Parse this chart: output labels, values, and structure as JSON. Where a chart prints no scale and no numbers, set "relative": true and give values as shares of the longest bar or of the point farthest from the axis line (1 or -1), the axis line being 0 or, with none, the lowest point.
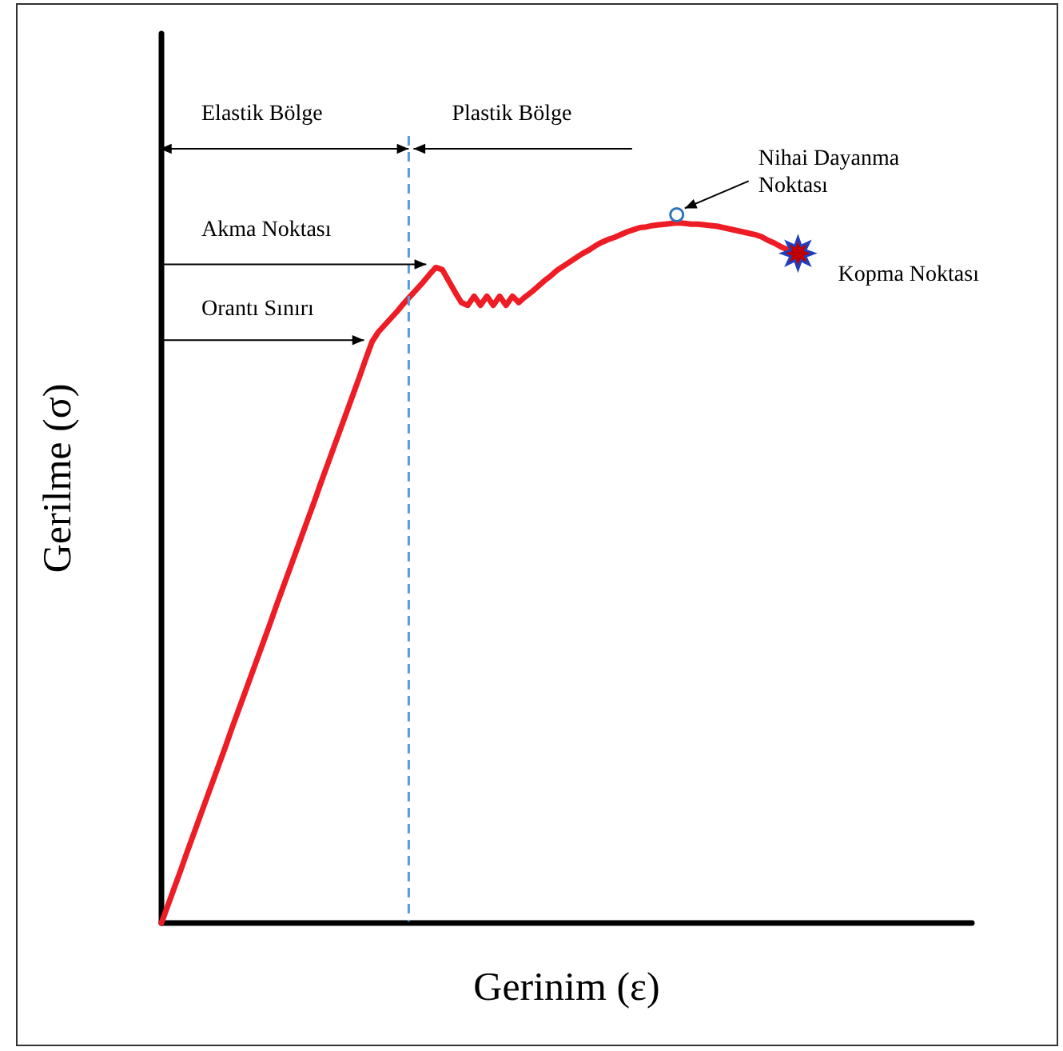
{
  "chart_data": {
    "type": "line",
    "relative": true,
    "xlabel": "Gerinim (ε)",
    "ylabel": "Gerilme (σ)",
    "line_style": "solid",
    "categories": [
      null,
      null,
      null,
      null,
      null,
      null,
      null,
      null,
      null,
      null,
      null,
      null,
      null,
      null,
      null,
      null,
      null,
      null,
      null,
      null,
      null,
      null,
      null,
      null,
      null,
      null,
      null,
      null,
      null,
      null,
      null,
      null,
      null,
      null,
      null,
      null,
      null,
      null,
      null,
      null,
      null,
      null,
      null,
      null,
      null,
      null,
      null,
      null,
      null,
      null,
      null,
      null,
      null,
      null,
      null,
      null,
      null,
      null,
      null,
      null,
      null,
      null,
      null,
      null,
      null,
      null,
      null,
      null,
      null,
      null,
      null,
      null,
      null,
      null,
      null,
      null,
      null,
      null,
      null,
      null,
      null,
      null,
      null,
      null,
      null,
      null,
      null,
      null,
      null,
      null,
      null,
      null,
      null,
      null,
      null,
      null,
      null,
      null,
      null,
      null,
      null,
      null,
      null,
      null,
      null,
      null,
      null,
      null,
      null,
      null,
      null,
      null,
      null,
      null,
      null,
      null,
      null,
      null,
      null,
      null,
      null,
      null,
      null,
      null,
      null,
      null,
      null,
      null
    ],
    "series": [
      {
        "color": "#ee1c25",
        "values": [
          0,
          0.025,
          0.05,
          0.075,
          0.101,
          0.126,
          0.151,
          0.176,
          0.201,
          0.226,
          0.251,
          0.277,
          0.302,
          0.327,
          0.352,
          0.377,
          0.402,
          0.427,
          0.453,
          0.478,
          0.503,
          0.528,
          0.553,
          0.578,
          0.603,
          0.629,
          0.654,
          0.679,
          0.704,
          0.729,
          0.754,
          0.779,
          0.805,
          0.83,
          0.844,
          0.854,
          0.864,
          0.874,
          0.885,
          0.895,
          0.905,
          0.915,
          0.926,
          0.936,
          0.933,
          0.917,
          0.901,
          0.886,
          0.882,
          0.895,
          0.882,
          0.895,
          0.882,
          0.895,
          0.882,
          0.895,
          0.886,
          0.894,
          0.901,
          0.909,
          0.917,
          0.924,
          0.932,
          0.938,
          0.944,
          0.95,
          0.956,
          0.961,
          0.967,
          0.972,
          0.976,
          0.979,
          0.983,
          0.987,
          0.99,
          0.993,
          0.994,
          0.996,
          0.997,
          0.998,
          0.999,
          1,
          0.999,
          0.998,
          0.998,
          0.997,
          0.996,
          0.995,
          0.993,
          0.991,
          0.989,
          0.987,
          0.985,
          0.983,
          0.98,
          0.975,
          0.971,
          0.966,
          0.962,
          0.957,
          0.954,
          null,
          null,
          null,
          null,
          null,
          null,
          null,
          null,
          null,
          null,
          null,
          null,
          null,
          null,
          null,
          null,
          null,
          null,
          null,
          null,
          null,
          null,
          null,
          null,
          null,
          null,
          null
        ]
      }
    ],
    "annotations": [
      "Elastik Bölge",
      "Plastik Bölge",
      "Akma Noktası",
      "Orantı Sınırı",
      "Nihai Dayanma Noktası",
      "Kopma Noktası"
    ]
  }
}
